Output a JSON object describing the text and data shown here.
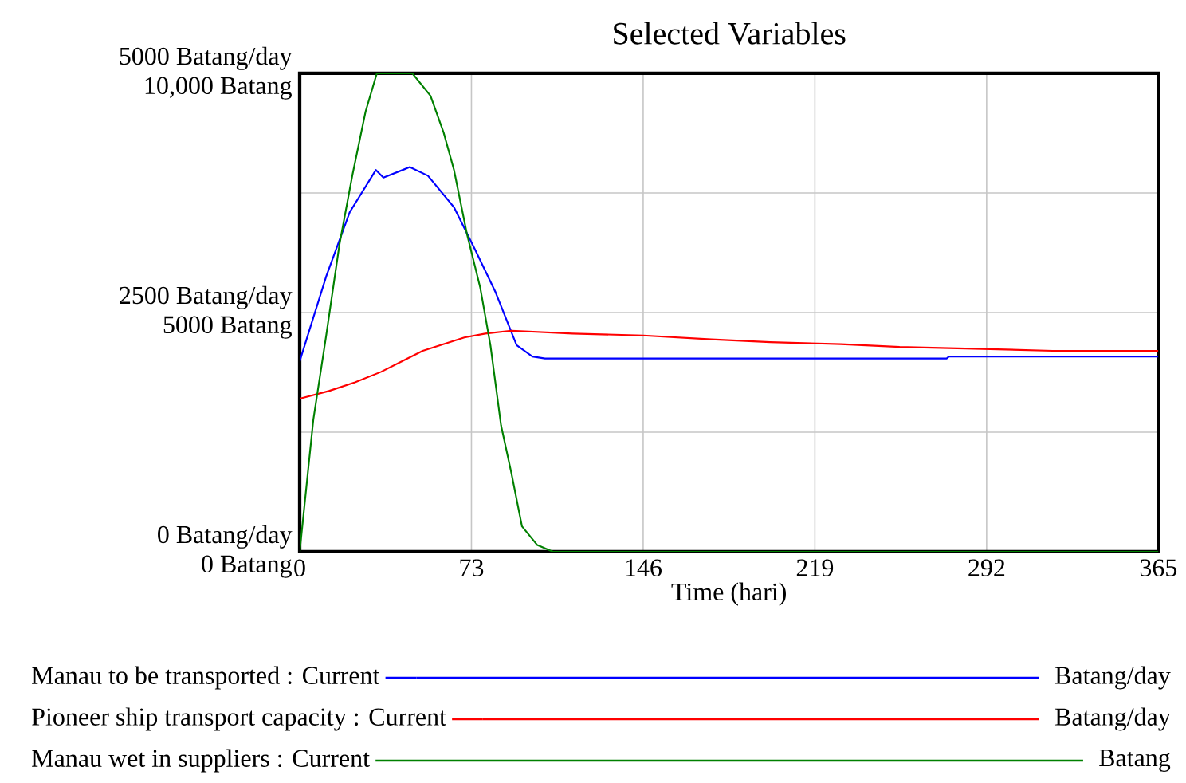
{
  "chart_data": {
    "type": "line",
    "title": "Selected Variables",
    "xlabel": "Time (hari)",
    "xlim": [
      0,
      365
    ],
    "xticks": [
      0,
      73,
      146,
      219,
      292,
      365
    ],
    "ylim": [
      0,
      5000
    ],
    "yticks": [
      {
        "value": 0,
        "label": "0 Batang/day"
      },
      {
        "value": 1250,
        "label": null
      },
      {
        "value": 2500,
        "label": "2500 Batang/day"
      },
      {
        "value": 3750,
        "label": null
      },
      {
        "value": 5000,
        "label": "5000 Batang/day"
      }
    ],
    "y2lim": [
      0,
      10000
    ],
    "y2ticks": [
      {
        "value": 0,
        "label": "0 Batang"
      },
      {
        "value": 2500,
        "label": null
      },
      {
        "value": 5000,
        "label": "5000 Batang"
      },
      {
        "value": 7500,
        "label": null
      },
      {
        "value": 10000,
        "label": "10,000 Batang"
      }
    ],
    "grid": true,
    "legend": "bottom",
    "annotations": [
      "Batang/day",
      "Batang/day",
      "Batang"
    ],
    "series": [
      {
        "name": "Manau to be transported : Current",
        "color": "#0000ff",
        "x": [
          0,
          11.3,
          21.3,
          32.4,
          35.6,
          46.8,
          54.5,
          65.6,
          74.5,
          83.3,
          92.2,
          98.9,
          104.3,
          275,
          276,
          365
        ],
        "values": [
          1990,
          2880,
          3550,
          3990,
          3910,
          4020,
          3930,
          3600,
          3160,
          2710,
          2160,
          2040,
          2020,
          2020,
          2040,
          2040
        ]
      },
      {
        "name": "Pioneer ship transport capacity : Current",
        "color": "#ff0000",
        "x": [
          0,
          12.4,
          23.5,
          34.6,
          52.3,
          70,
          78.9,
          90,
          116,
          146,
          175,
          200,
          230,
          255,
          290,
          320,
          365
        ],
        "values": [
          1600,
          1680,
          1770,
          1880,
          2100,
          2240,
          2280,
          2310,
          2280,
          2260,
          2220,
          2190,
          2170,
          2140,
          2120,
          2100,
          2100
        ]
      },
      {
        "name": "Manau wet in suppliers : Current",
        "color": "#008000",
        "axis": "y2",
        "x": [
          0,
          5.8,
          11.3,
          16.9,
          22.4,
          28,
          32.8,
          47.9,
          55.6,
          61.2,
          65.6,
          71.1,
          76.7,
          81.1,
          85.6,
          90,
          94.5,
          101,
          107.7,
          365
        ],
        "values": [
          0,
          2760,
          4530,
          6420,
          7870,
          9200,
          10000,
          10000,
          9530,
          8760,
          7980,
          6640,
          5530,
          4310,
          2640,
          1640,
          530,
          140,
          0,
          0
        ]
      }
    ]
  }
}
